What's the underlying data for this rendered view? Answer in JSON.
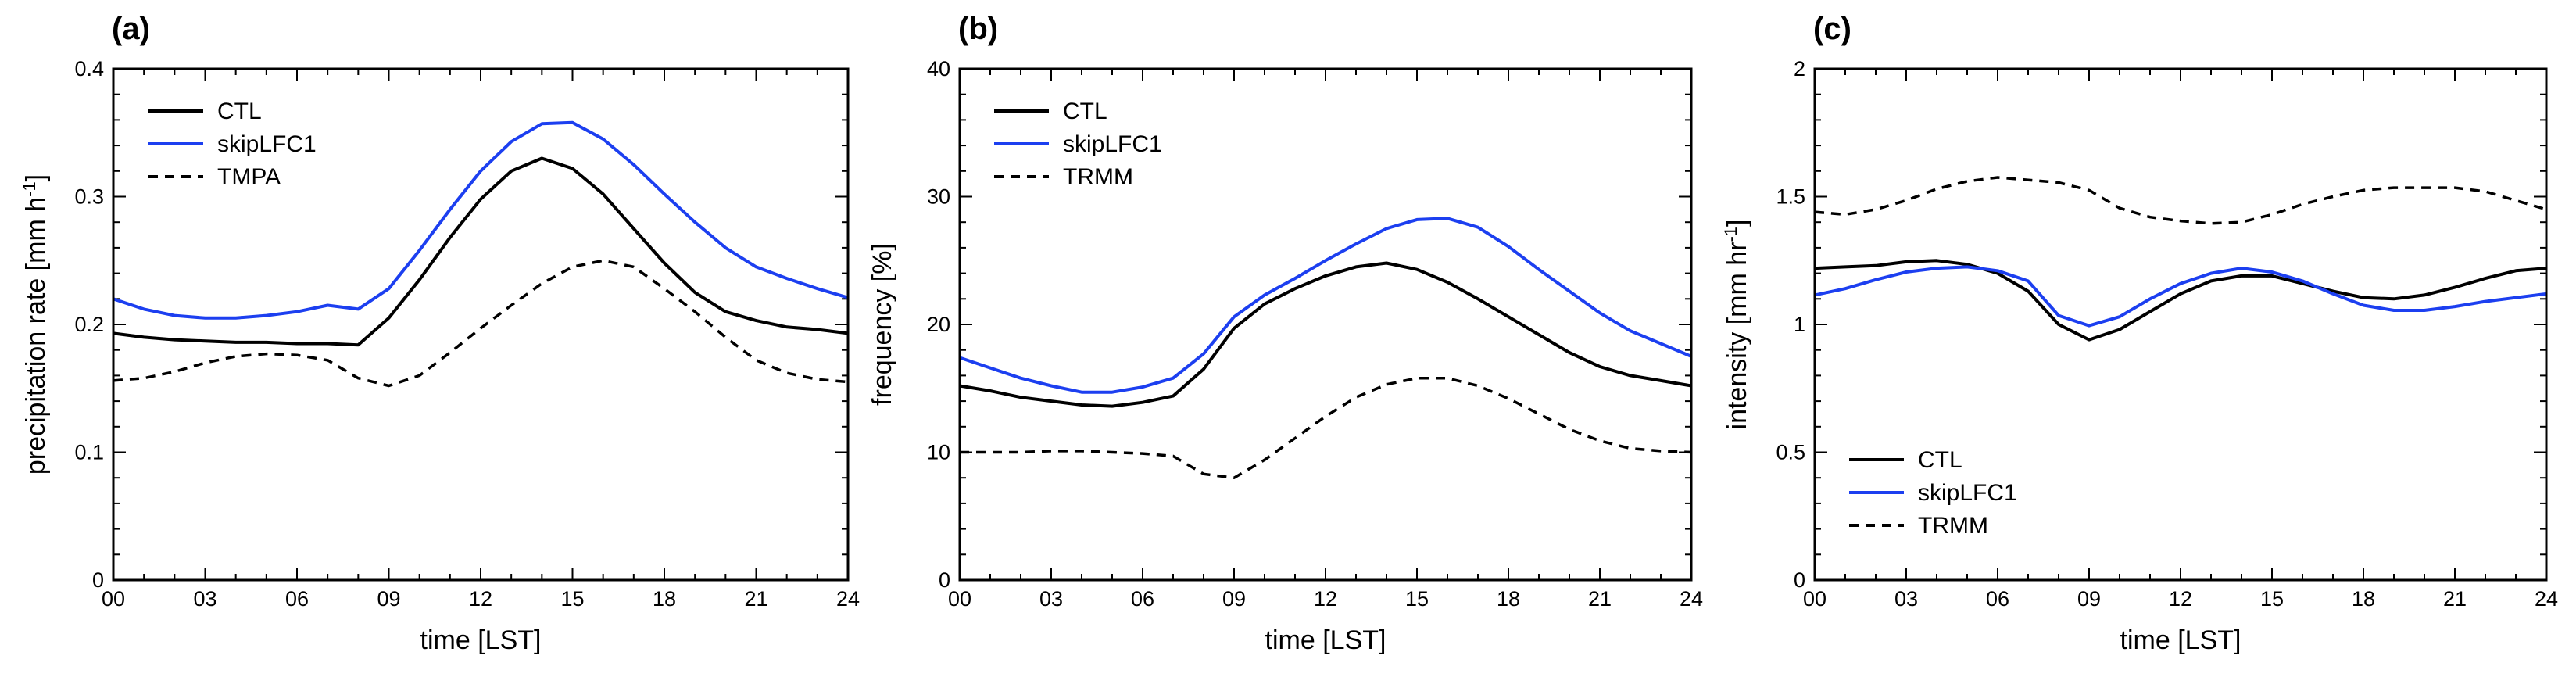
{
  "chart_data": [
    {
      "type": "line",
      "panel_label": "(a)",
      "xlabel": "time [LST]",
      "ylabel": "precipitation rate [mm h",
      "ylabel_sup": "-1",
      "ylabel_close": "]",
      "xlim": [
        0,
        24
      ],
      "ylim": [
        0,
        0.4
      ],
      "xticks": [
        0,
        3,
        6,
        9,
        12,
        15,
        18,
        21,
        24
      ],
      "xtick_labels": [
        "00",
        "03",
        "06",
        "09",
        "12",
        "15",
        "18",
        "21",
        "24"
      ],
      "yticks": [
        0,
        0.1,
        0.2,
        0.3,
        0.4
      ],
      "ytick_labels": [
        "0",
        "0.1",
        "0.2",
        "0.3",
        "0.4"
      ],
      "legend_position": "top-left",
      "series": [
        {
          "name": "CTL",
          "color": "#000000",
          "dash": "solid",
          "x": [
            0,
            1,
            2,
            3,
            4,
            5,
            6,
            7,
            8,
            9,
            10,
            11,
            12,
            13,
            14,
            15,
            16,
            17,
            18,
            19,
            20,
            21,
            22,
            23,
            24
          ],
          "y": [
            0.193,
            0.19,
            0.188,
            0.187,
            0.186,
            0.186,
            0.185,
            0.185,
            0.184,
            0.205,
            0.235,
            0.268,
            0.298,
            0.32,
            0.33,
            0.322,
            0.302,
            0.275,
            0.248,
            0.225,
            0.21,
            0.203,
            0.198,
            0.196,
            0.193
          ]
        },
        {
          "name": "skipLFC1",
          "color": "#1c3ff0",
          "dash": "solid",
          "x": [
            0,
            1,
            2,
            3,
            4,
            5,
            6,
            7,
            8,
            9,
            10,
            11,
            12,
            13,
            14,
            15,
            16,
            17,
            18,
            19,
            20,
            21,
            22,
            23,
            24
          ],
          "y": [
            0.22,
            0.212,
            0.207,
            0.205,
            0.205,
            0.207,
            0.21,
            0.215,
            0.212,
            0.228,
            0.258,
            0.29,
            0.32,
            0.343,
            0.357,
            0.358,
            0.345,
            0.325,
            0.302,
            0.28,
            0.26,
            0.245,
            0.236,
            0.228,
            0.221
          ]
        },
        {
          "name": "TMPA",
          "color": "#000000",
          "dash": "dashed",
          "x": [
            0,
            1,
            2,
            3,
            4,
            5,
            6,
            7,
            8,
            9,
            10,
            11,
            12,
            13,
            14,
            15,
            16,
            17,
            18,
            19,
            20,
            21,
            22,
            23,
            24
          ],
          "y": [
            0.156,
            0.158,
            0.163,
            0.17,
            0.175,
            0.177,
            0.176,
            0.172,
            0.158,
            0.152,
            0.16,
            0.178,
            0.197,
            0.215,
            0.232,
            0.245,
            0.25,
            0.245,
            0.228,
            0.21,
            0.19,
            0.172,
            0.162,
            0.157,
            0.155
          ]
        }
      ]
    },
    {
      "type": "line",
      "panel_label": "(b)",
      "xlabel": "time [LST]",
      "ylabel": "frequency [%]",
      "ylabel_sup": "",
      "ylabel_close": "",
      "xlim": [
        0,
        24
      ],
      "ylim": [
        0,
        40
      ],
      "xticks": [
        0,
        3,
        6,
        9,
        12,
        15,
        18,
        21,
        24
      ],
      "xtick_labels": [
        "00",
        "03",
        "06",
        "09",
        "12",
        "15",
        "18",
        "21",
        "24"
      ],
      "yticks": [
        0,
        10,
        20,
        30,
        40
      ],
      "ytick_labels": [
        "0",
        "10",
        "20",
        "30",
        "40"
      ],
      "legend_position": "top-left",
      "series": [
        {
          "name": "CTL",
          "color": "#000000",
          "dash": "solid",
          "x": [
            0,
            1,
            2,
            3,
            4,
            5,
            6,
            7,
            8,
            9,
            10,
            11,
            12,
            13,
            14,
            15,
            16,
            17,
            18,
            19,
            20,
            21,
            22,
            23,
            24
          ],
          "y": [
            15.2,
            14.8,
            14.3,
            14.0,
            13.7,
            13.6,
            13.9,
            14.4,
            16.5,
            19.7,
            21.6,
            22.8,
            23.8,
            24.5,
            24.8,
            24.3,
            23.3,
            22.0,
            20.6,
            19.2,
            17.8,
            16.7,
            16.0,
            15.6,
            15.2
          ]
        },
        {
          "name": "skipLFC1",
          "color": "#1c3ff0",
          "dash": "solid",
          "x": [
            0,
            1,
            2,
            3,
            4,
            5,
            6,
            7,
            8,
            9,
            10,
            11,
            12,
            13,
            14,
            15,
            16,
            17,
            18,
            19,
            20,
            21,
            22,
            23,
            24
          ],
          "y": [
            17.4,
            16.6,
            15.8,
            15.2,
            14.7,
            14.7,
            15.1,
            15.8,
            17.7,
            20.6,
            22.3,
            23.6,
            25.0,
            26.3,
            27.5,
            28.2,
            28.3,
            27.6,
            26.1,
            24.3,
            22.6,
            20.9,
            19.5,
            18.5,
            17.5
          ]
        },
        {
          "name": "TRMM",
          "color": "#000000",
          "dash": "dashed",
          "x": [
            0,
            1,
            2,
            3,
            4,
            5,
            6,
            7,
            8,
            9,
            10,
            11,
            12,
            13,
            14,
            15,
            16,
            17,
            18,
            19,
            20,
            21,
            22,
            23,
            24
          ],
          "y": [
            10.0,
            10.0,
            10.0,
            10.1,
            10.1,
            10.0,
            9.9,
            9.7,
            8.3,
            8.0,
            9.4,
            11.1,
            12.8,
            14.3,
            15.3,
            15.8,
            15.8,
            15.2,
            14.2,
            13.0,
            11.8,
            10.9,
            10.3,
            10.1,
            10.0
          ]
        }
      ]
    },
    {
      "type": "line",
      "panel_label": "(c)",
      "xlabel": "time [LST]",
      "ylabel": "intensity [mm hr",
      "ylabel_sup": "-1",
      "ylabel_close": "]",
      "xlim": [
        0,
        24
      ],
      "ylim": [
        0,
        2
      ],
      "xticks": [
        0,
        3,
        6,
        9,
        12,
        15,
        18,
        21,
        24
      ],
      "xtick_labels": [
        "00",
        "03",
        "06",
        "09",
        "12",
        "15",
        "18",
        "21",
        "24"
      ],
      "yticks": [
        0,
        0.5,
        1,
        1.5,
        2
      ],
      "ytick_labels": [
        "0",
        "0.5",
        "1",
        "1.5",
        "2"
      ],
      "legend_position": "bottom-left",
      "series": [
        {
          "name": "CTL",
          "color": "#000000",
          "dash": "solid",
          "x": [
            0,
            1,
            2,
            3,
            4,
            5,
            6,
            7,
            8,
            9,
            10,
            11,
            12,
            13,
            14,
            15,
            16,
            17,
            18,
            19,
            20,
            21,
            22,
            23,
            24
          ],
          "y": [
            1.22,
            1.225,
            1.23,
            1.245,
            1.25,
            1.235,
            1.2,
            1.13,
            1.0,
            0.94,
            0.98,
            1.05,
            1.12,
            1.17,
            1.19,
            1.19,
            1.16,
            1.13,
            1.105,
            1.1,
            1.115,
            1.145,
            1.18,
            1.21,
            1.22
          ]
        },
        {
          "name": "skipLFC1",
          "color": "#1c3ff0",
          "dash": "solid",
          "x": [
            0,
            1,
            2,
            3,
            4,
            5,
            6,
            7,
            8,
            9,
            10,
            11,
            12,
            13,
            14,
            15,
            16,
            17,
            18,
            19,
            20,
            21,
            22,
            23,
            24
          ],
          "y": [
            1.115,
            1.14,
            1.175,
            1.205,
            1.22,
            1.225,
            1.21,
            1.17,
            1.035,
            0.995,
            1.03,
            1.1,
            1.16,
            1.2,
            1.22,
            1.205,
            1.17,
            1.12,
            1.075,
            1.055,
            1.055,
            1.07,
            1.09,
            1.105,
            1.12
          ]
        },
        {
          "name": "TRMM",
          "color": "#000000",
          "dash": "dashed",
          "x": [
            0,
            1,
            2,
            3,
            4,
            5,
            6,
            7,
            8,
            9,
            10,
            11,
            12,
            13,
            14,
            15,
            16,
            17,
            18,
            19,
            20,
            21,
            22,
            23,
            24
          ],
          "y": [
            1.44,
            1.43,
            1.45,
            1.485,
            1.53,
            1.56,
            1.575,
            1.565,
            1.555,
            1.525,
            1.455,
            1.42,
            1.405,
            1.395,
            1.4,
            1.43,
            1.47,
            1.5,
            1.525,
            1.535,
            1.535,
            1.535,
            1.52,
            1.485,
            1.45
          ]
        }
      ]
    }
  ]
}
